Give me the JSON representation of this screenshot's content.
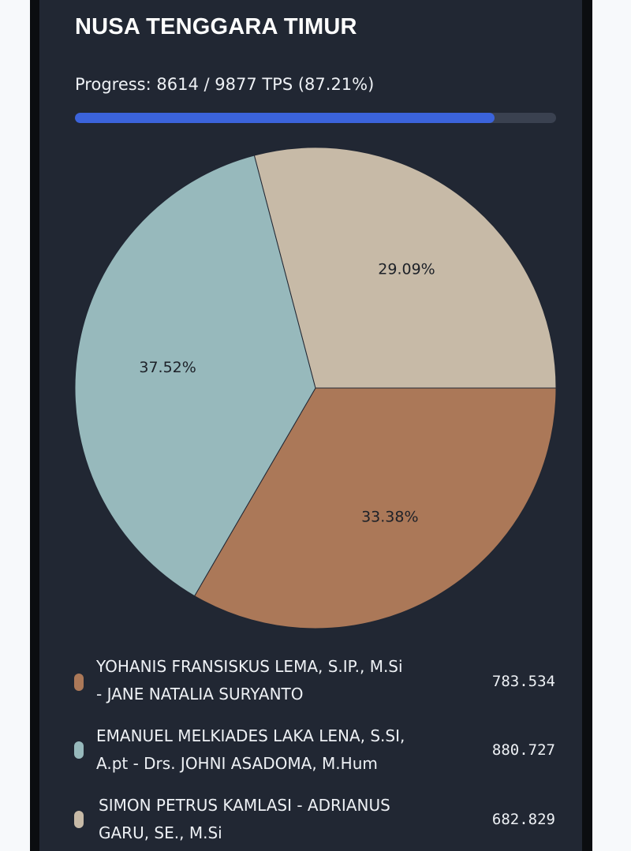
{
  "header": {
    "title": "NUSA TENGGARA TIMUR",
    "progress_text": "Progress: 8614 / 9877 TPS (87.21%)",
    "progress_fraction": 0.8721
  },
  "chart_data": {
    "type": "pie",
    "title": "NUSA TENGGARA TIMUR",
    "slices": [
      {
        "name": "YOHANIS FRANSISKUS LEMA, S.IP., M.Si - JANE NATALIA SURYANTO",
        "value": 783534,
        "value_label": "783.534",
        "percent": 33.38,
        "percent_label": "33.38%",
        "color": "#ab7858"
      },
      {
        "name": "EMANUEL MELKIADES LAKA LENA, S.SI, A.pt - Drs. JOHNI ASADOMA, M.Hum",
        "value": 880727,
        "value_label": "880.727",
        "percent": 37.52,
        "percent_label": "37.52%",
        "color": "#97b9bc"
      },
      {
        "name": "SIMON PETRUS KAMLASI - ADRIANUS GARU, SE., M.Si",
        "value": 682829,
        "value_label": "682.829",
        "percent": 29.09,
        "percent_label": "29.09%",
        "color": "#c7baa7"
      }
    ],
    "legend_position": "bottom",
    "slice_order_clockwise_from_3_oclock": [
      0,
      1,
      2
    ]
  },
  "legend": {
    "items": [
      {
        "name_line1": "YOHANIS FRANSISKUS LEMA, S.IP., M.Si",
        "name_line2": "- JANE NATALIA SURYANTO",
        "value": "783.534"
      },
      {
        "name_line1": "EMANUEL MELKIADES LAKA LENA, S.SI,",
        "name_line2": "A.pt - Drs. JOHNI ASADOMA, M.Hum",
        "value": "880.727"
      },
      {
        "name_line1": "SIMON PETRUS KAMLASI - ADRIANUS",
        "name_line2": "GARU, SE., M.Si",
        "value": "682.829"
      }
    ]
  }
}
